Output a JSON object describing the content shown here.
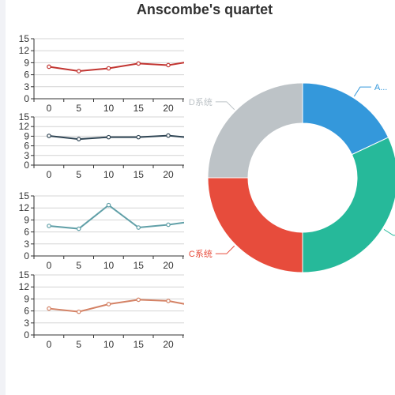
{
  "title": "Anscombe's quartet",
  "colors": {
    "background": "#ffffff",
    "grid": "#d4d4d4",
    "axis": "#333333",
    "left_strip": "#f1f2f6"
  },
  "chart_data": [
    {
      "type": "line",
      "x": [
        0,
        5,
        10,
        15,
        20,
        25
      ],
      "xticks": [
        "0",
        "5",
        "10",
        "15",
        "20"
      ],
      "values": [
        8.0,
        6.9,
        7.6,
        8.8,
        8.4,
        9.6
      ],
      "ylim": [
        0,
        15
      ],
      "yticks": [
        "0",
        "3",
        "6",
        "9",
        "12",
        "15"
      ],
      "color": "#c23531",
      "grid": true
    },
    {
      "type": "line",
      "x": [
        0,
        5,
        10,
        15,
        20,
        25
      ],
      "xticks": [
        "0",
        "5",
        "10",
        "15",
        "20"
      ],
      "values": [
        9.1,
        8.1,
        8.7,
        8.7,
        9.2,
        8.3
      ],
      "ylim": [
        0,
        15
      ],
      "yticks": [
        "0",
        "3",
        "6",
        "9",
        "12",
        "15"
      ],
      "color": "#2f4554",
      "grid": true
    },
    {
      "type": "line",
      "x": [
        0,
        5,
        10,
        15,
        20,
        25
      ],
      "xticks": [
        "0",
        "5",
        "10",
        "15",
        "20"
      ],
      "values": [
        7.5,
        6.8,
        12.7,
        7.1,
        7.8,
        8.8
      ],
      "ylim": [
        0,
        15
      ],
      "yticks": [
        "0",
        "3",
        "6",
        "9",
        "12",
        "15"
      ],
      "color": "#61a0a8",
      "grid": true
    },
    {
      "type": "line",
      "x": [
        0,
        5,
        10,
        15,
        20,
        25
      ],
      "xticks": [
        "0",
        "5",
        "10",
        "15",
        "20"
      ],
      "values": [
        6.6,
        5.8,
        7.7,
        8.8,
        8.5,
        7.1
      ],
      "ylim": [
        0,
        15
      ],
      "yticks": [
        "0",
        "3",
        "6",
        "9",
        "12",
        "15"
      ],
      "color": "#d48265",
      "grid": true
    },
    {
      "type": "pie",
      "donut": true,
      "slices": [
        {
          "label": "A...",
          "value": 18,
          "color": "#3498db"
        },
        {
          "label": "",
          "value": 32,
          "color": "#26b99a"
        },
        {
          "label": "C系统",
          "value": 25,
          "color": "#e74c3c"
        },
        {
          "label": "D系统",
          "value": 25,
          "color": "#bdc3c7"
        }
      ]
    }
  ]
}
